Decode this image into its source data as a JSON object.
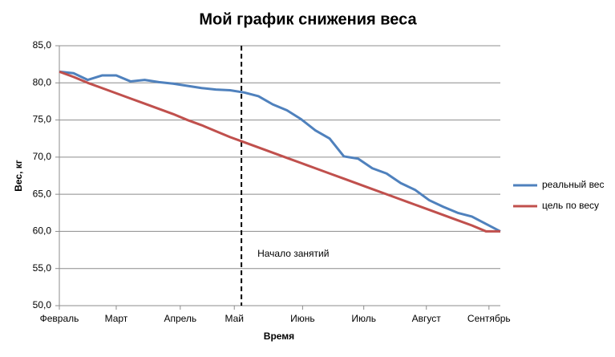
{
  "chart_data": {
    "type": "line",
    "title": "Мой график снижения веса",
    "xlabel": "Время",
    "ylabel": "Вес, кг",
    "x": [
      0,
      1,
      2,
      3,
      4,
      5,
      6,
      7,
      8,
      9,
      10,
      11,
      12,
      13,
      14,
      15,
      16,
      17,
      18,
      19,
      20,
      21,
      22,
      23,
      24,
      25,
      26,
      27,
      28,
      29,
      30,
      31
    ],
    "xlim": [
      0,
      31
    ],
    "xticks": [
      {
        "value": 0,
        "label": "Февраль"
      },
      {
        "value": 4,
        "label": "Март"
      },
      {
        "value": 8.5,
        "label": "Апрель"
      },
      {
        "value": 12.3,
        "label": "Май"
      },
      {
        "value": 17.1,
        "label": "Июнь"
      },
      {
        "value": 21.4,
        "label": "Июль"
      },
      {
        "value": 25.8,
        "label": "Август"
      },
      {
        "value": 30.2,
        "label": "Сентябрь"
      }
    ],
    "ylim": [
      50,
      85
    ],
    "yticks": [
      {
        "value": 50,
        "label": "50,0"
      },
      {
        "value": 55,
        "label": "55,0"
      },
      {
        "value": 60,
        "label": "60,0"
      },
      {
        "value": 65,
        "label": "65,0"
      },
      {
        "value": 70,
        "label": "70,0"
      },
      {
        "value": 75,
        "label": "75,0"
      },
      {
        "value": 80,
        "label": "80,0"
      },
      {
        "value": 85,
        "label": "85,0"
      }
    ],
    "grid": true,
    "legend": "right",
    "vline": {
      "x": 12.8,
      "label": "Начало занятий"
    },
    "series": [
      {
        "name": "реальный вес",
        "color": "#4f81bd",
        "values": [
          81.5,
          81.3,
          80.4,
          81.0,
          81.0,
          80.2,
          80.4,
          80.1,
          79.9,
          79.6,
          79.3,
          79.1,
          79.0,
          78.7,
          78.2,
          77.1,
          76.3,
          75.1,
          73.6,
          72.5,
          70.1,
          69.8,
          68.5,
          67.8,
          66.5,
          65.6,
          64.2,
          63.3,
          62.5,
          62.0,
          61.0,
          60.0
        ]
      },
      {
        "name": "цель по весу",
        "color": "#c0504d",
        "values": [
          81.5,
          80.8,
          80.0,
          79.3,
          78.6,
          77.9,
          77.2,
          76.5,
          75.8,
          75.0,
          74.3,
          73.5,
          72.7,
          72.0,
          71.3,
          70.6,
          69.9,
          69.2,
          68.5,
          67.8,
          67.1,
          66.4,
          65.7,
          65.0,
          64.3,
          63.6,
          62.9,
          62.2,
          61.5,
          60.8,
          60.0,
          60.0
        ]
      }
    ]
  }
}
